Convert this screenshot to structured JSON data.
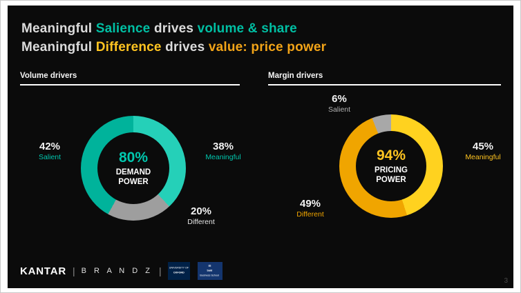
{
  "page": {
    "number": "3"
  },
  "title": {
    "line1": {
      "part1": "Meaningful ",
      "part2": "Salience",
      "part3": " drives ",
      "part4": "volume & share"
    },
    "line2": {
      "part1": "Meaningful ",
      "part2": "Difference",
      "part3": " drives ",
      "part4": "value: price power"
    },
    "colors": {
      "base": "#dcdcdc",
      "teal": "#00bfa3",
      "yellow": "#ffc421",
      "amber": "#f2a418"
    }
  },
  "sections": {
    "volume": {
      "header": "Volume drivers"
    },
    "margin": {
      "header": "Margin drivers"
    }
  },
  "footer": {
    "kantar": "KANTAR",
    "separator": "|",
    "brandz": "B R A N D Z",
    "oxford": {
      "line1": "UNIVERSITY OF",
      "line2": "OXFORD"
    },
    "said": {
      "glyph": "≡",
      "line1": "Saïd",
      "line2": "Business School"
    }
  },
  "chart_data": [
    {
      "type": "pie",
      "variant": "donut",
      "name": "demand-power",
      "title": "DEMAND POWER",
      "center_value": "80%",
      "center_value_color": "#00c7ae",
      "segments": [
        {
          "label": "Meaningful",
          "value": 38,
          "color": "#25d0b8"
        },
        {
          "label": "Different",
          "value": 20,
          "color": "#9e9e9e"
        },
        {
          "label": "Salient",
          "value": 42,
          "color": "#00b39b"
        }
      ],
      "labels": [
        {
          "pct": "42%",
          "name": "Salient",
          "pct_color": "#f2f2f2",
          "name_color": "#00c7ae",
          "position": "left"
        },
        {
          "pct": "38%",
          "name": "Meaningful",
          "pct_color": "#f2f2f2",
          "name_color": "#00c7ae",
          "position": "right"
        },
        {
          "pct": "20%",
          "name": "Different",
          "pct_color": "#f2f2f2",
          "name_color": "#e6e6e6",
          "position": "bottom-right"
        }
      ]
    },
    {
      "type": "pie",
      "variant": "donut",
      "name": "pricing-power",
      "title": "PRICING POWER",
      "center_value": "94%",
      "center_value_color": "#ffc421",
      "segments": [
        {
          "label": "Meaningful",
          "value": 45,
          "color": "#ffd21f"
        },
        {
          "label": "Different",
          "value": 49,
          "color": "#f0a500"
        },
        {
          "label": "Salient",
          "value": 6,
          "color": "#a8a8a8"
        }
      ],
      "labels": [
        {
          "pct": "6%",
          "name": "Salient",
          "pct_color": "#f2f2f2",
          "name_color": "#b3b3b3",
          "position": "top"
        },
        {
          "pct": "45%",
          "name": "Meaningful",
          "pct_color": "#f2f2f2",
          "name_color": "#ffc421",
          "position": "right"
        },
        {
          "pct": "49%",
          "name": "Different",
          "pct_color": "#f2f2f2",
          "name_color": "#f0a500",
          "position": "bottom-left"
        }
      ]
    }
  ]
}
